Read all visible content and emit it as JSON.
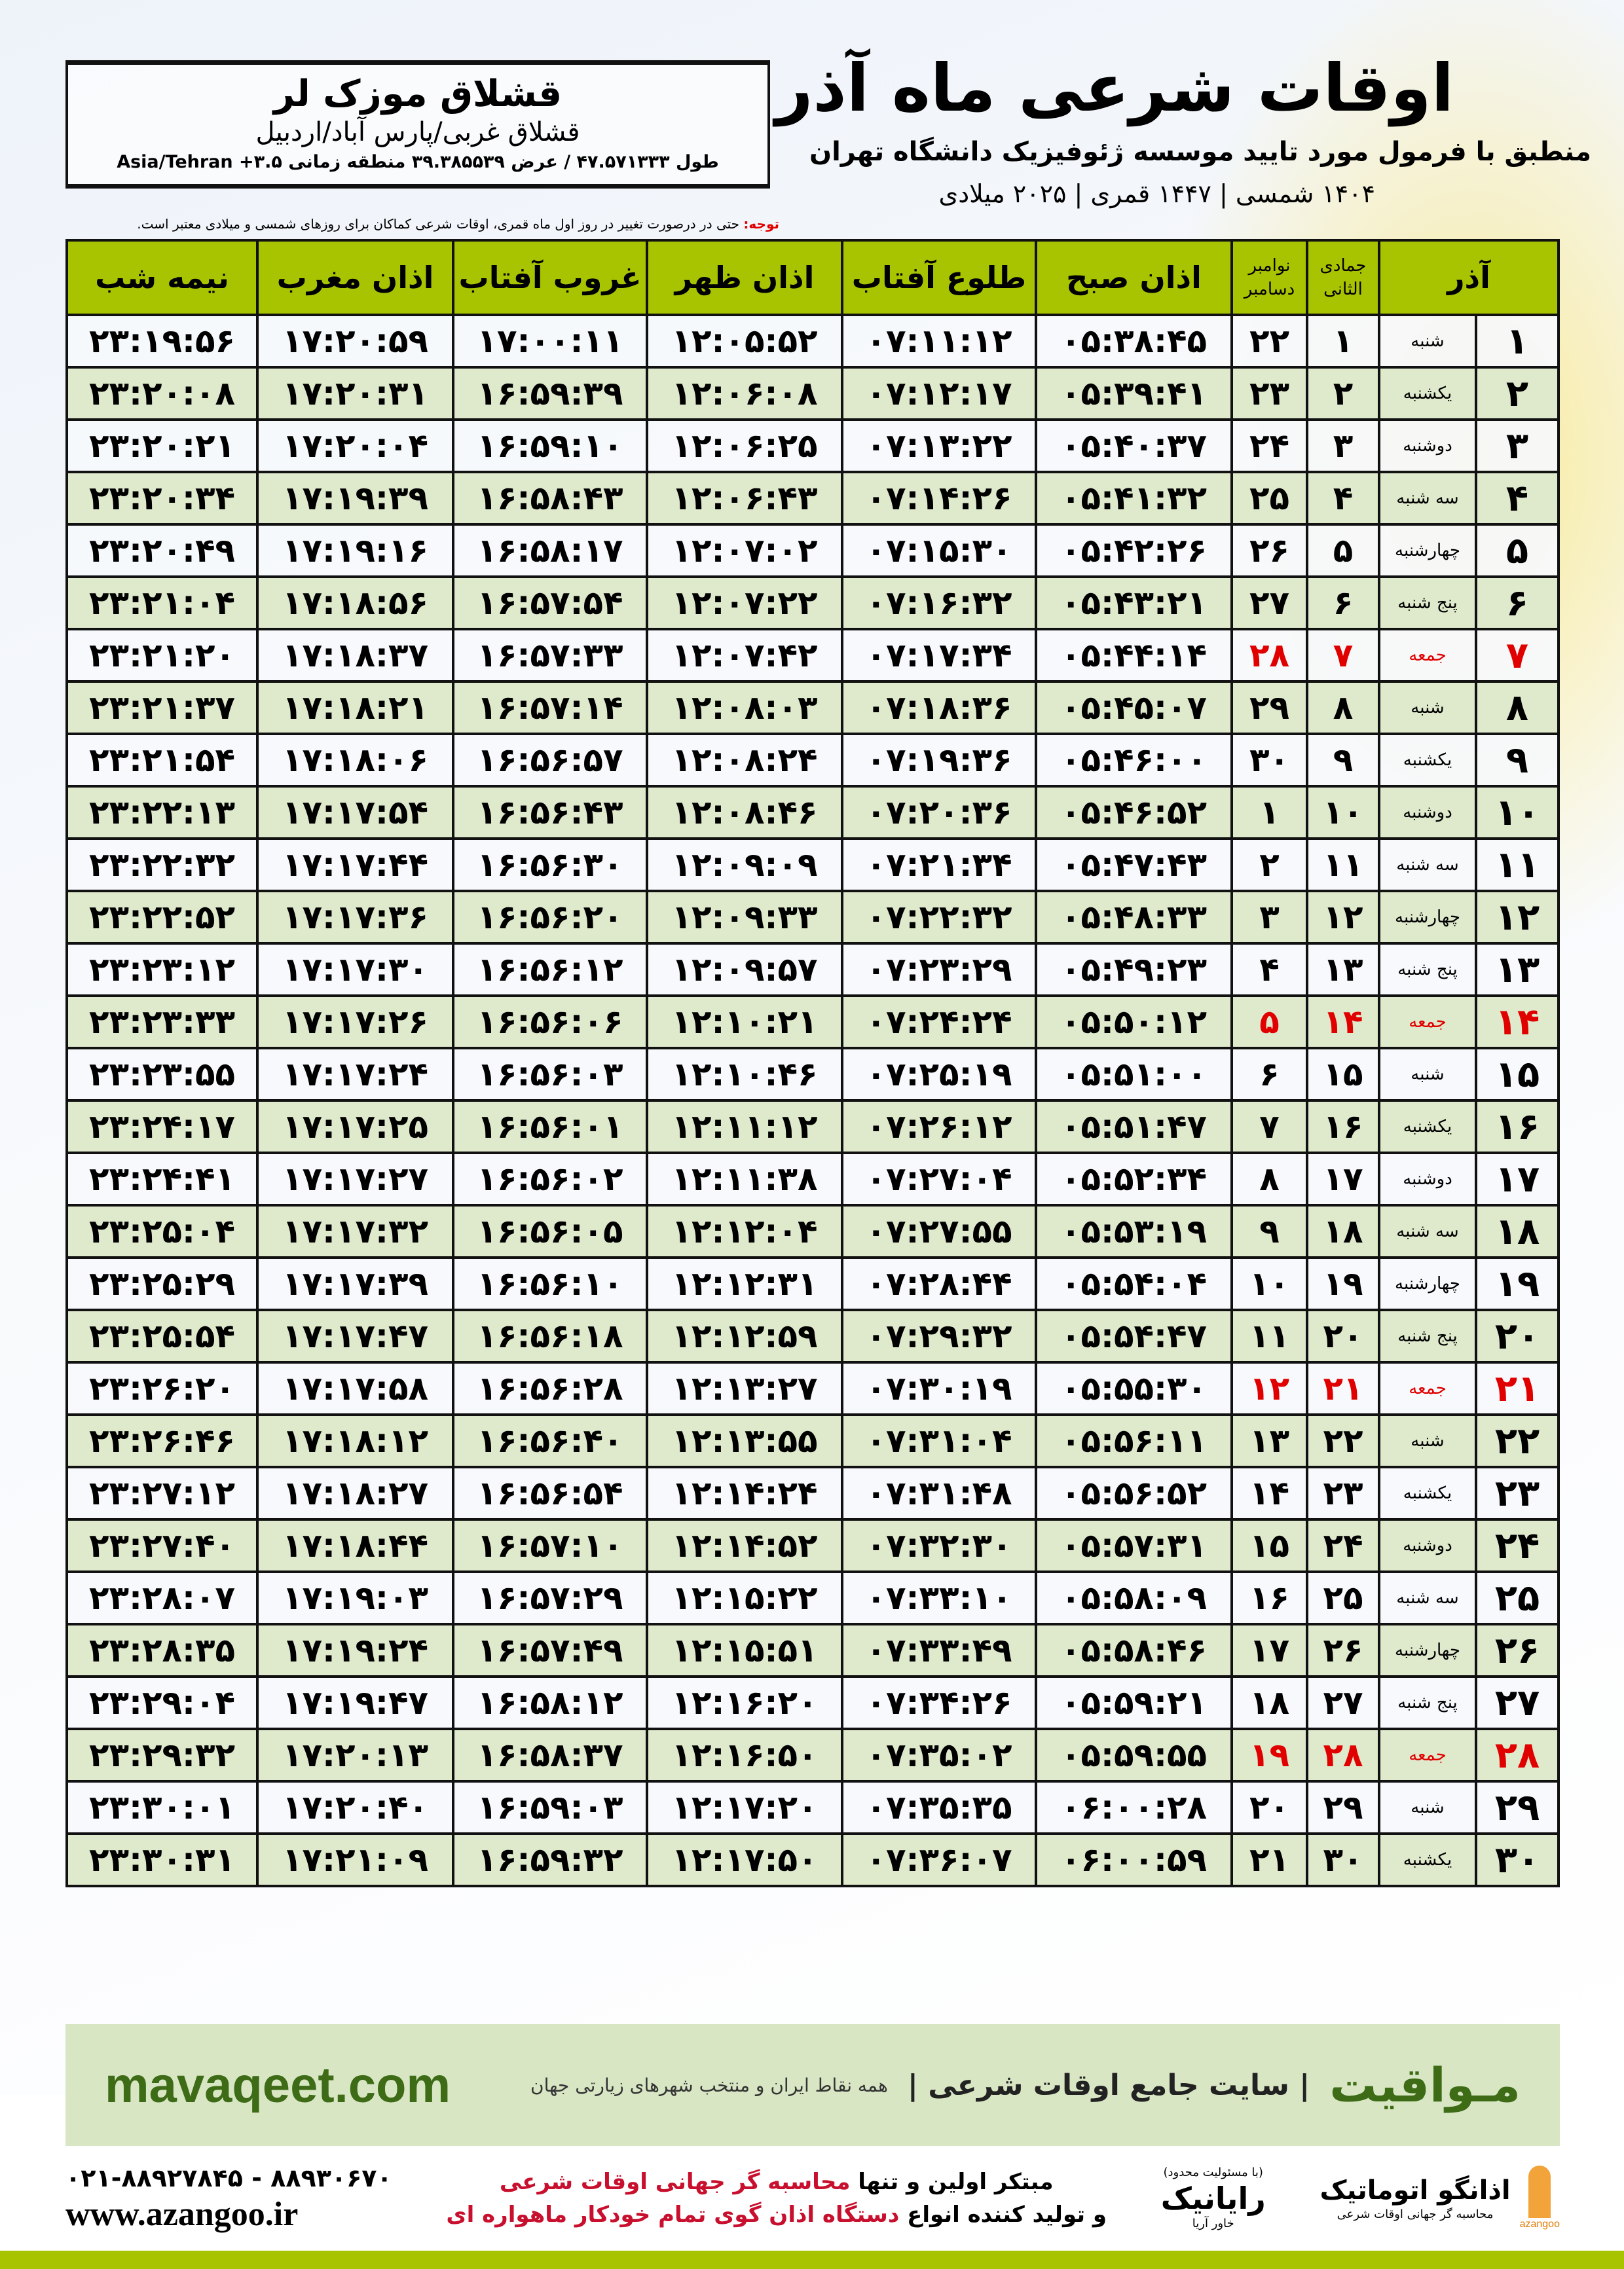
{
  "location": {
    "name": "قشلاق موزک لر",
    "region": "قشلاق غربی/پارس آباد/اردبیل",
    "coords": "طول ۴۷.۵۷۱۳۳۳ / عرض ۳۹.۳۸۵۵۳۹ منطقه زمانی ۳.۵+ Asia/Tehran"
  },
  "header": {
    "title": "اوقات شرعی ماه آذر",
    "subtitle": "منطبق با فرمول مورد تایید موسسه ژئوفیزیک دانشگاه تهران",
    "years": "۱۴۰۴ شمسی | ۱۴۴۷ قمری | ۲۰۲۵ میلادی"
  },
  "note": {
    "label": "توجه:",
    "text": " حتی در درصورت تغییر در روز اول ماه قمری، اوقات شرعی کماکان برای روزهای شمسی و میلادی معتبر است."
  },
  "colors": {
    "header_green": "#a8c400",
    "row_green": "#dfe9cc",
    "friday_red": "#e00000"
  },
  "table": {
    "columns": {
      "azar": "آذر",
      "hijri": "جمادی الثانی",
      "greg_top": "نوامبر",
      "greg_bottom": "دسامبر",
      "fajr": "اذان صبح",
      "sunrise": "طلوع آفتاب",
      "dhuhr": "اذان ظهر",
      "sunset": "غروب آفتاب",
      "maghrib": "اذان مغرب",
      "midnight": "نیمه شب"
    },
    "rows": [
      [
        "۱",
        "شنبه",
        "۱",
        "۲۲",
        "۰۵:۳۸:۴۵",
        "۰۷:۱۱:۱۲",
        "۱۲:۰۵:۵۲",
        "۱۷:۰۰:۱۱",
        "۱۷:۲۰:۵۹",
        "۲۳:۱۹:۵۶"
      ],
      [
        "۲",
        "یکشنبه",
        "۲",
        "۲۳",
        "۰۵:۳۹:۴۱",
        "۰۷:۱۲:۱۷",
        "۱۲:۰۶:۰۸",
        "۱۶:۵۹:۳۹",
        "۱۷:۲۰:۳۱",
        "۲۳:۲۰:۰۸"
      ],
      [
        "۳",
        "دوشنبه",
        "۳",
        "۲۴",
        "۰۵:۴۰:۳۷",
        "۰۷:۱۳:۲۲",
        "۱۲:۰۶:۲۵",
        "۱۶:۵۹:۱۰",
        "۱۷:۲۰:۰۴",
        "۲۳:۲۰:۲۱"
      ],
      [
        "۴",
        "سه شنبه",
        "۴",
        "۲۵",
        "۰۵:۴۱:۳۲",
        "۰۷:۱۴:۲۶",
        "۱۲:۰۶:۴۳",
        "۱۶:۵۸:۴۳",
        "۱۷:۱۹:۳۹",
        "۲۳:۲۰:۳۴"
      ],
      [
        "۵",
        "چهارشنبه",
        "۵",
        "۲۶",
        "۰۵:۴۲:۲۶",
        "۰۷:۱۵:۳۰",
        "۱۲:۰۷:۰۲",
        "۱۶:۵۸:۱۷",
        "۱۷:۱۹:۱۶",
        "۲۳:۲۰:۴۹"
      ],
      [
        "۶",
        "پنج شنبه",
        "۶",
        "۲۷",
        "۰۵:۴۳:۲۱",
        "۰۷:۱۶:۳۲",
        "۱۲:۰۷:۲۲",
        "۱۶:۵۷:۵۴",
        "۱۷:۱۸:۵۶",
        "۲۳:۲۱:۰۴"
      ],
      [
        "۷",
        "جمعه",
        "۷",
        "۲۸",
        "۰۵:۴۴:۱۴",
        "۰۷:۱۷:۳۴",
        "۱۲:۰۷:۴۲",
        "۱۶:۵۷:۳۳",
        "۱۷:۱۸:۳۷",
        "۲۳:۲۱:۲۰"
      ],
      [
        "۸",
        "شنبه",
        "۸",
        "۲۹",
        "۰۵:۴۵:۰۷",
        "۰۷:۱۸:۳۶",
        "۱۲:۰۸:۰۳",
        "۱۶:۵۷:۱۴",
        "۱۷:۱۸:۲۱",
        "۲۳:۲۱:۳۷"
      ],
      [
        "۹",
        "یکشنبه",
        "۹",
        "۳۰",
        "۰۵:۴۶:۰۰",
        "۰۷:۱۹:۳۶",
        "۱۲:۰۸:۲۴",
        "۱۶:۵۶:۵۷",
        "۱۷:۱۸:۰۶",
        "۲۳:۲۱:۵۴"
      ],
      [
        "۱۰",
        "دوشنبه",
        "۱۰",
        "۱",
        "۰۵:۴۶:۵۲",
        "۰۷:۲۰:۳۶",
        "۱۲:۰۸:۴۶",
        "۱۶:۵۶:۴۳",
        "۱۷:۱۷:۵۴",
        "۲۳:۲۲:۱۳"
      ],
      [
        "۱۱",
        "سه شنبه",
        "۱۱",
        "۲",
        "۰۵:۴۷:۴۳",
        "۰۷:۲۱:۳۴",
        "۱۲:۰۹:۰۹",
        "۱۶:۵۶:۳۰",
        "۱۷:۱۷:۴۴",
        "۲۳:۲۲:۳۲"
      ],
      [
        "۱۲",
        "چهارشنبه",
        "۱۲",
        "۳",
        "۰۵:۴۸:۳۳",
        "۰۷:۲۲:۳۲",
        "۱۲:۰۹:۳۳",
        "۱۶:۵۶:۲۰",
        "۱۷:۱۷:۳۶",
        "۲۳:۲۲:۵۲"
      ],
      [
        "۱۳",
        "پنج شنبه",
        "۱۳",
        "۴",
        "۰۵:۴۹:۲۳",
        "۰۷:۲۳:۲۹",
        "۱۲:۰۹:۵۷",
        "۱۶:۵۶:۱۲",
        "۱۷:۱۷:۳۰",
        "۲۳:۲۳:۱۲"
      ],
      [
        "۱۴",
        "جمعه",
        "۱۴",
        "۵",
        "۰۵:۵۰:۱۲",
        "۰۷:۲۴:۲۴",
        "۱۲:۱۰:۲۱",
        "۱۶:۵۶:۰۶",
        "۱۷:۱۷:۲۶",
        "۲۳:۲۳:۳۳"
      ],
      [
        "۱۵",
        "شنبه",
        "۱۵",
        "۶",
        "۰۵:۵۱:۰۰",
        "۰۷:۲۵:۱۹",
        "۱۲:۱۰:۴۶",
        "۱۶:۵۶:۰۳",
        "۱۷:۱۷:۲۴",
        "۲۳:۲۳:۵۵"
      ],
      [
        "۱۶",
        "یکشنبه",
        "۱۶",
        "۷",
        "۰۵:۵۱:۴۷",
        "۰۷:۲۶:۱۲",
        "۱۲:۱۱:۱۲",
        "۱۶:۵۶:۰۱",
        "۱۷:۱۷:۲۵",
        "۲۳:۲۴:۱۷"
      ],
      [
        "۱۷",
        "دوشنبه",
        "۱۷",
        "۸",
        "۰۵:۵۲:۳۴",
        "۰۷:۲۷:۰۴",
        "۱۲:۱۱:۳۸",
        "۱۶:۵۶:۰۲",
        "۱۷:۱۷:۲۷",
        "۲۳:۲۴:۴۱"
      ],
      [
        "۱۸",
        "سه شنبه",
        "۱۸",
        "۹",
        "۰۵:۵۳:۱۹",
        "۰۷:۲۷:۵۵",
        "۱۲:۱۲:۰۴",
        "۱۶:۵۶:۰۵",
        "۱۷:۱۷:۳۲",
        "۲۳:۲۵:۰۴"
      ],
      [
        "۱۹",
        "چهارشنبه",
        "۱۹",
        "۱۰",
        "۰۵:۵۴:۰۴",
        "۰۷:۲۸:۴۴",
        "۱۲:۱۲:۳۱",
        "۱۶:۵۶:۱۰",
        "۱۷:۱۷:۳۹",
        "۲۳:۲۵:۲۹"
      ],
      [
        "۲۰",
        "پنج شنبه",
        "۲۰",
        "۱۱",
        "۰۵:۵۴:۴۷",
        "۰۷:۲۹:۳۲",
        "۱۲:۱۲:۵۹",
        "۱۶:۵۶:۱۸",
        "۱۷:۱۷:۴۷",
        "۲۳:۲۵:۵۴"
      ],
      [
        "۲۱",
        "جمعه",
        "۲۱",
        "۱۲",
        "۰۵:۵۵:۳۰",
        "۰۷:۳۰:۱۹",
        "۱۲:۱۳:۲۷",
        "۱۶:۵۶:۲۸",
        "۱۷:۱۷:۵۸",
        "۲۳:۲۶:۲۰"
      ],
      [
        "۲۲",
        "شنبه",
        "۲۲",
        "۱۳",
        "۰۵:۵۶:۱۱",
        "۰۷:۳۱:۰۴",
        "۱۲:۱۳:۵۵",
        "۱۶:۵۶:۴۰",
        "۱۷:۱۸:۱۲",
        "۲۳:۲۶:۴۶"
      ],
      [
        "۲۳",
        "یکشنبه",
        "۲۳",
        "۱۴",
        "۰۵:۵۶:۵۲",
        "۰۷:۳۱:۴۸",
        "۱۲:۱۴:۲۴",
        "۱۶:۵۶:۵۴",
        "۱۷:۱۸:۲۷",
        "۲۳:۲۷:۱۲"
      ],
      [
        "۲۴",
        "دوشنبه",
        "۲۴",
        "۱۵",
        "۰۵:۵۷:۳۱",
        "۰۷:۳۲:۳۰",
        "۱۲:۱۴:۵۲",
        "۱۶:۵۷:۱۰",
        "۱۷:۱۸:۴۴",
        "۲۳:۲۷:۴۰"
      ],
      [
        "۲۵",
        "سه شنبه",
        "۲۵",
        "۱۶",
        "۰۵:۵۸:۰۹",
        "۰۷:۳۳:۱۰",
        "۱۲:۱۵:۲۲",
        "۱۶:۵۷:۲۹",
        "۱۷:۱۹:۰۳",
        "۲۳:۲۸:۰۷"
      ],
      [
        "۲۶",
        "چهارشنبه",
        "۲۶",
        "۱۷",
        "۰۵:۵۸:۴۶",
        "۰۷:۳۳:۴۹",
        "۱۲:۱۵:۵۱",
        "۱۶:۵۷:۴۹",
        "۱۷:۱۹:۲۴",
        "۲۳:۲۸:۳۵"
      ],
      [
        "۲۷",
        "پنج شنبه",
        "۲۷",
        "۱۸",
        "۰۵:۵۹:۲۱",
        "۰۷:۳۴:۲۶",
        "۱۲:۱۶:۲۰",
        "۱۶:۵۸:۱۲",
        "۱۷:۱۹:۴۷",
        "۲۳:۲۹:۰۴"
      ],
      [
        "۲۸",
        "جمعه",
        "۲۸",
        "۱۹",
        "۰۵:۵۹:۵۵",
        "۰۷:۳۵:۰۲",
        "۱۲:۱۶:۵۰",
        "۱۶:۵۸:۳۷",
        "۱۷:۲۰:۱۳",
        "۲۳:۲۹:۳۲"
      ],
      [
        "۲۹",
        "شنبه",
        "۲۹",
        "۲۰",
        "۰۶:۰۰:۲۸",
        "۰۷:۳۵:۳۵",
        "۱۲:۱۷:۲۰",
        "۱۶:۵۹:۰۳",
        "۱۷:۲۰:۴۰",
        "۲۳:۳۰:۰۱"
      ],
      [
        "۳۰",
        "یکشنبه",
        "۳۰",
        "۲۱",
        "۰۶:۰۰:۵۹",
        "۰۷:۳۶:۰۷",
        "۱۲:۱۷:۵۰",
        "۱۶:۵۹:۳۲",
        "۱۷:۲۱:۰۹",
        "۲۳:۳۰:۳۱"
      ]
    ]
  },
  "ad": {
    "brand": "مـواقیت",
    "desc": "| سایت جامع اوقات شرعی |",
    "sub": "همه نقاط ایران و منتخب شهرهای زیارتی جهان",
    "site": "mavaqeet.com"
  },
  "footer": {
    "phone": "۰۲۱-۸۸۹۲۷۸۴۵ - ۸۸۹۳۰۶۷۰",
    "web": "www.azangoo.ir",
    "promo_1a": "مبتکر اولین و تنها ",
    "promo_1b": "محاسبه گر جهانی اوقات شرعی",
    "promo_2a": "و تولید کننده انواع ",
    "promo_2b": "دستگاه اذان گوی تمام خودکار ماهواره ای",
    "rayanik_small": "(با مسئولیت محدود)",
    "rayanik": "رایانیک",
    "rayanik_sub": "خاور آریا",
    "azangoo": "اذانگو اتوماتیک",
    "azangoo_sub": "محاسبه گر جهانی اوقات شرعی",
    "azangoo_latin": "azangoo"
  }
}
